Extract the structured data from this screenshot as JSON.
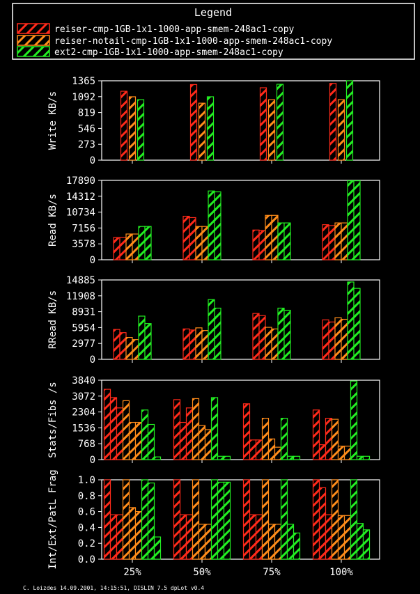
{
  "legend": {
    "title": "Legend",
    "items": [
      {
        "label": "reiser-cmp-1GB-1x1-1000-app-smem-248ac1-copy",
        "color": "#ff2a1a"
      },
      {
        "label": "reiser-notail-cmp-1GB-1x1-1000-app-smem-248ac1-copy",
        "color": "#ff8c1a"
      },
      {
        "label": "ext2-cmp-1GB-1x1-1000-app-smem-248ac1-copy",
        "color": "#22ee22"
      }
    ]
  },
  "footer": "C. Loizdes 14.09.2001, 14:15:51, DISLIN 7.5 dpLot v0.4",
  "chart_data": [
    {
      "type": "bar",
      "ylabel": "Write KB/s",
      "categories": [
        "25%",
        "50%",
        "75%",
        "100%"
      ],
      "yticks": [
        "0",
        "273",
        "546",
        "819",
        "1092",
        "1365"
      ],
      "ylim": [
        0,
        1365
      ],
      "bars_per_series": 1,
      "series": [
        {
          "values": [
            [
              1185
            ],
            [
              1300
            ],
            [
              1245
            ],
            [
              1320
            ]
          ]
        },
        {
          "values": [
            [
              1090
            ],
            [
              980
            ],
            [
              1040
            ],
            [
              1040
            ]
          ]
        },
        {
          "values": [
            [
              1040
            ],
            [
              1090
            ],
            [
              1305
            ],
            [
              1380
            ]
          ]
        }
      ]
    },
    {
      "type": "bar",
      "ylabel": "Read KB/s",
      "categories": [
        "25%",
        "50%",
        "75%",
        "100%"
      ],
      "yticks": [
        "0",
        "3578",
        "7156",
        "10734",
        "14312",
        "17890"
      ],
      "ylim": [
        0,
        17890
      ],
      "bars_per_series": 2,
      "series": [
        {
          "values": [
            [
              5000,
              5000
            ],
            [
              9800,
              9500
            ],
            [
              6700,
              6600
            ],
            [
              7900,
              7700
            ]
          ]
        },
        {
          "values": [
            [
              5800,
              5800
            ],
            [
              7500,
              7500
            ],
            [
              10000,
              10000
            ],
            [
              8300,
              8300
            ]
          ]
        },
        {
          "values": [
            [
              7500,
              7500
            ],
            [
              15500,
              15300
            ],
            [
              8300,
              8300
            ],
            [
              17800,
              17800
            ]
          ]
        }
      ]
    },
    {
      "type": "bar",
      "ylabel": "RRead KB/s",
      "categories": [
        "25%",
        "50%",
        "75%",
        "100%"
      ],
      "yticks": [
        "0",
        "2977",
        "5954",
        "8931",
        "11908",
        "14885"
      ],
      "ylim": [
        0,
        14885
      ],
      "bars_per_series": 2,
      "series": [
        {
          "values": [
            [
              5600,
              5000
            ],
            [
              5700,
              5500
            ],
            [
              8600,
              8200
            ],
            [
              7400,
              7000
            ]
          ]
        },
        {
          "values": [
            [
              4100,
              3700
            ],
            [
              5900,
              5400
            ],
            [
              6000,
              5700
            ],
            [
              7800,
              7500
            ]
          ]
        },
        {
          "values": [
            [
              8100,
              6700
            ],
            [
              11200,
              9600
            ],
            [
              9600,
              9200
            ],
            [
              14500,
              13300
            ]
          ]
        }
      ]
    },
    {
      "type": "bar",
      "ylabel": "Stats/Fibs /s",
      "categories": [
        "25%",
        "50%",
        "75%",
        "100%"
      ],
      "yticks": [
        "0",
        "768",
        "1536",
        "2304",
        "3072",
        "3840"
      ],
      "ylim": [
        0,
        3840
      ],
      "bars_per_series": 3,
      "series": [
        {
          "values": [
            [
              3400,
              3000,
              2500
            ],
            [
              2900,
              1800,
              2500
            ],
            [
              2700,
              950,
              950
            ],
            [
              2400,
              720,
              2000
            ]
          ]
        },
        {
          "values": [
            [
              2850,
              1800,
              1800
            ],
            [
              2950,
              1650,
              1450
            ],
            [
              2000,
              1000,
              600
            ],
            [
              1950,
              650,
              650
            ]
          ]
        },
        {
          "values": [
            [
              2400,
              1700,
              130
            ],
            [
              3000,
              160,
              160
            ],
            [
              2000,
              160,
              160
            ],
            [
              3800,
              160,
              160
            ]
          ]
        }
      ]
    },
    {
      "type": "bar",
      "ylabel": "Int/Ext/PatL Frag",
      "categories": [
        "25%",
        "50%",
        "75%",
        "100%"
      ],
      "yticks": [
        "0.0",
        "0.2",
        "0.4",
        "0.6",
        "0.8",
        "1.0"
      ],
      "ylim": [
        0,
        1
      ],
      "bars_per_series": 3,
      "series": [
        {
          "values": [
            [
              1.0,
              0.56,
              0.56
            ],
            [
              1.0,
              0.56,
              0.56
            ],
            [
              1.0,
              0.56,
              0.56
            ],
            [
              1.0,
              0.9,
              0.56
            ]
          ]
        },
        {
          "values": [
            [
              1.0,
              0.65,
              0.6
            ],
            [
              1.0,
              0.44,
              0.44
            ],
            [
              1.0,
              0.44,
              0.44
            ],
            [
              1.0,
              0.55,
              0.55
            ]
          ]
        },
        {
          "values": [
            [
              1.0,
              0.96,
              0.28
            ],
            [
              1.0,
              0.97,
              0.97
            ],
            [
              1.0,
              0.44,
              0.33
            ],
            [
              1.0,
              0.45,
              0.37
            ]
          ]
        }
      ]
    }
  ]
}
